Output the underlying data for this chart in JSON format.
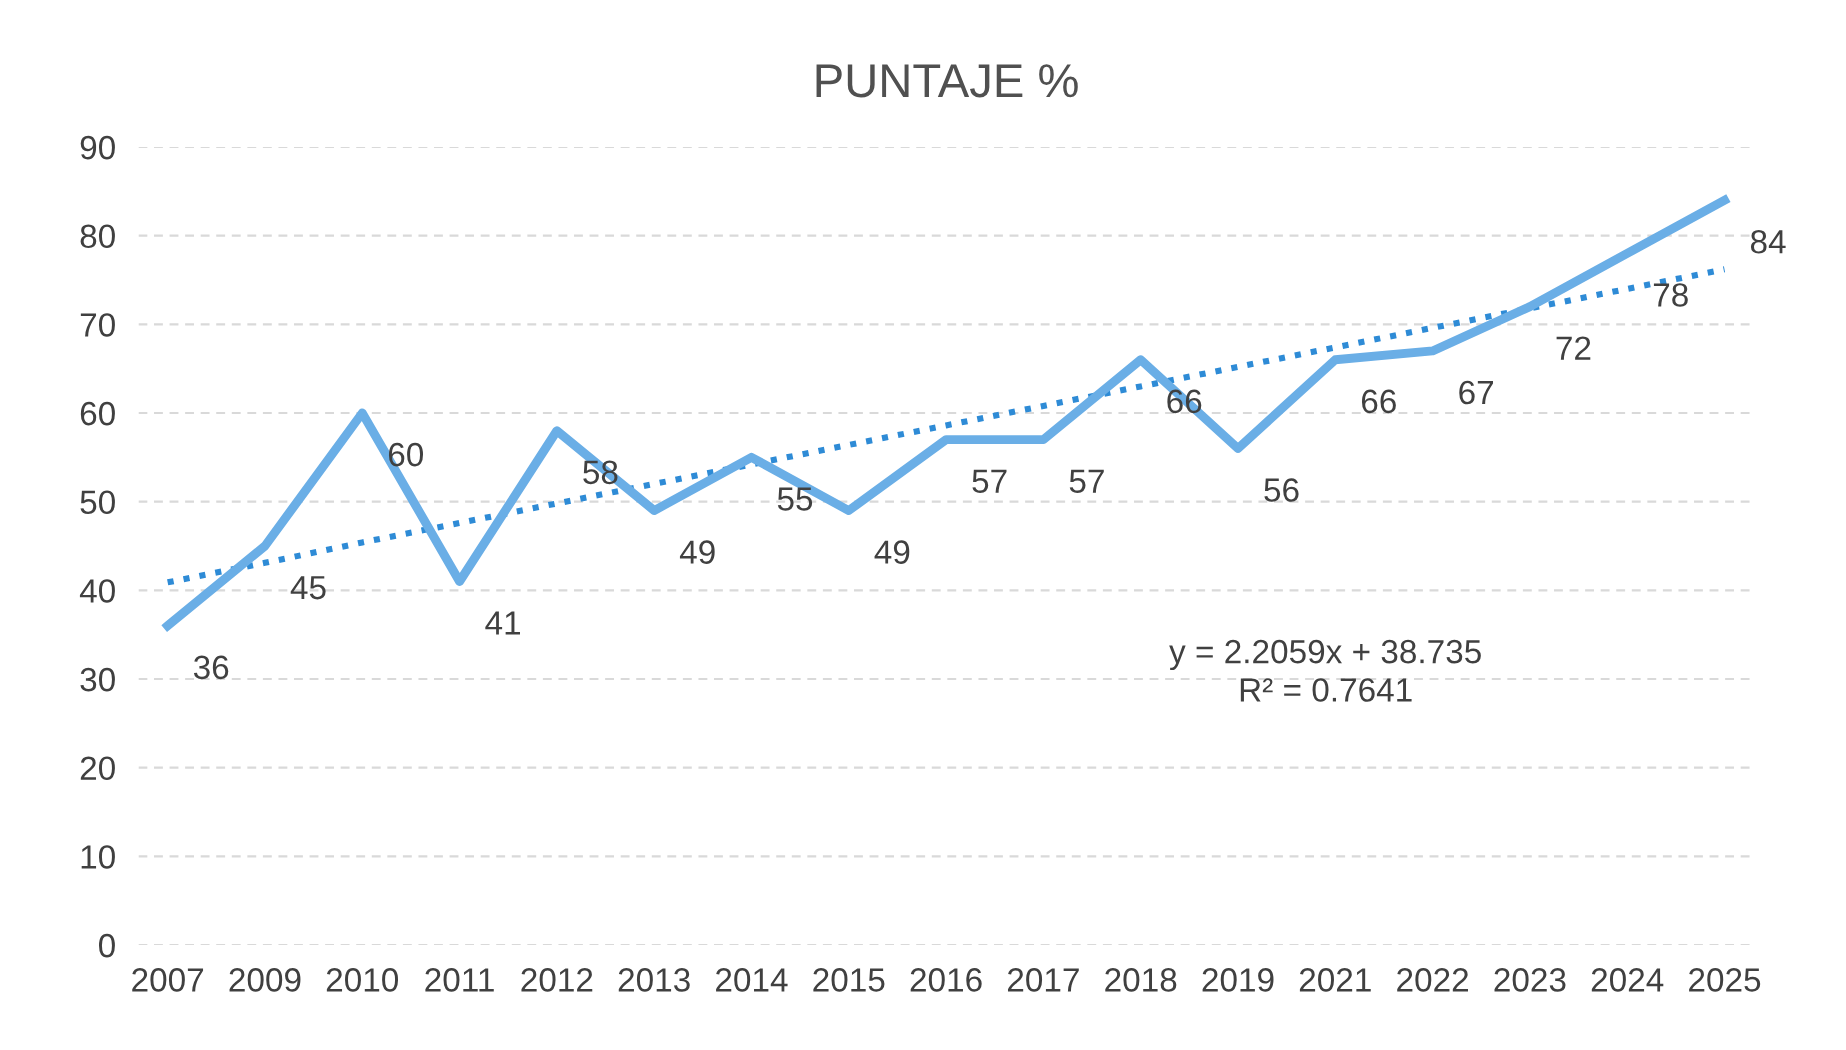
{
  "chart_data": {
    "type": "line",
    "title": "PUNTAJE %",
    "categories": [
      "2007",
      "2009",
      "2010",
      "2011",
      "2012",
      "2013",
      "2014",
      "2015",
      "2016",
      "2017",
      "2018",
      "2019",
      "2021",
      "2022",
      "2023",
      "2024",
      "2025"
    ],
    "series": [
      {
        "color": "#6aaee6",
        "values": [
          36,
          45,
          60,
          41,
          58,
          49,
          55,
          49,
          57,
          57,
          66,
          56,
          66,
          67,
          72,
          78,
          84
        ],
        "line_style": "solid",
        "data_labels": true
      },
      {
        "color": "#2e8bd6",
        "values": [
          40.9,
          43.1,
          45.4,
          47.6,
          49.8,
          52.0,
          54.2,
          56.4,
          58.6,
          60.8,
          63.0,
          65.2,
          67.4,
          69.6,
          71.8,
          74.0,
          76.2
        ],
        "line_style": "dotted"
      }
    ],
    "annotations": [
      "y = 2.2059x + 38.735\nR² = 0.7641"
    ],
    "ylim": [
      0,
      90
    ],
    "yticks": [
      0,
      10,
      20,
      30,
      40,
      50,
      60,
      70,
      80,
      90
    ],
    "grid": "y",
    "legend": false,
    "marker": "none"
  }
}
